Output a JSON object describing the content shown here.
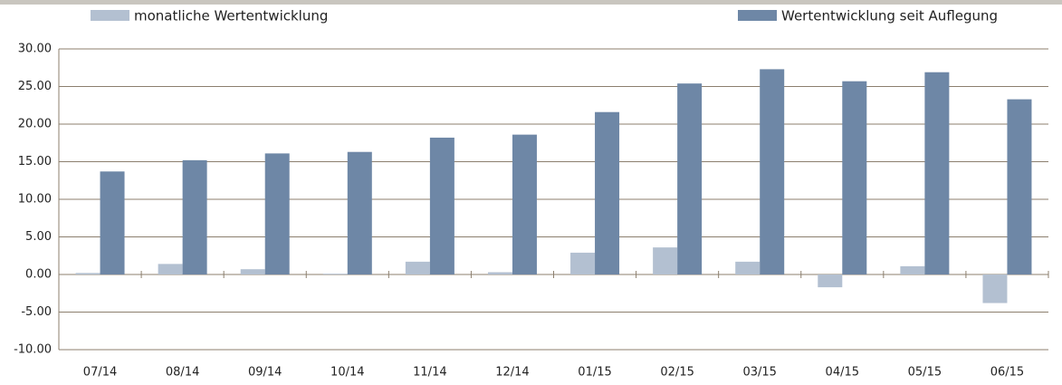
{
  "chart_data": {
    "type": "bar",
    "categories": [
      "07/14",
      "08/14",
      "09/14",
      "10/14",
      "11/14",
      "12/14",
      "01/15",
      "02/15",
      "03/15",
      "04/15",
      "05/15",
      "06/15"
    ],
    "series": [
      {
        "name": "monatliche Wertentwicklung",
        "color": "#b3c0d1",
        "values": [
          0.2,
          1.4,
          0.7,
          0.1,
          1.7,
          0.3,
          2.9,
          3.6,
          1.7,
          -1.7,
          1.1,
          -3.8
        ]
      },
      {
        "name": "Wertentwicklung seit Auflegung",
        "color": "#6e87a6",
        "values": [
          13.7,
          15.2,
          16.1,
          16.3,
          18.2,
          18.6,
          21.6,
          25.4,
          27.3,
          25.7,
          26.9,
          23.3
        ]
      }
    ],
    "ylim": [
      -10,
      30
    ],
    "yticks": [
      {
        "value": -10,
        "label": "-10.00"
      },
      {
        "value": -5,
        "label": "-5.00"
      },
      {
        "value": 0,
        "label": "0.00"
      },
      {
        "value": 5,
        "label": "5.00"
      },
      {
        "value": 10,
        "label": "10.00"
      },
      {
        "value": 15,
        "label": "15.00"
      },
      {
        "value": 20,
        "label": "20.00"
      },
      {
        "value": 25,
        "label": "25.00"
      },
      {
        "value": 30,
        "label": "30.00"
      }
    ],
    "grid": true
  }
}
